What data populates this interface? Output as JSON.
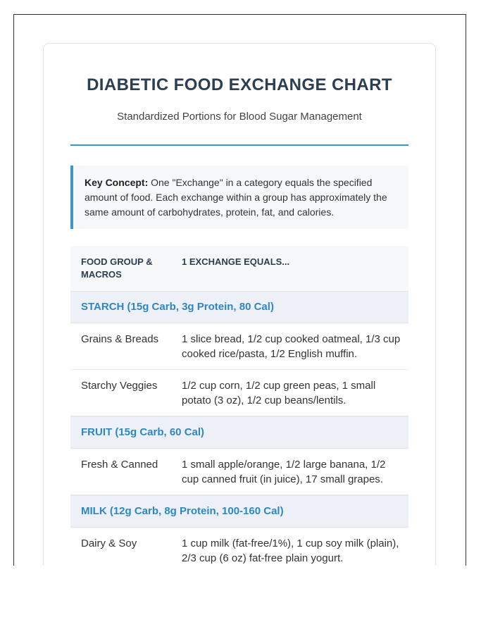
{
  "page": {
    "title": "DIABETIC FOOD EXCHANGE CHART",
    "subtitle": "Standardized Portions for Blood Sugar Management"
  },
  "key_concept": {
    "label": "Key Concept:",
    "text": " One \"Exchange\" in a category equals the specified amount of food. Each exchange within a group has approximately the same amount of carbohydrates, protein, fat, and calories."
  },
  "table": {
    "headers": {
      "col1": "FOOD GROUP & MACROS",
      "col2": "1 EXCHANGE EQUALS..."
    },
    "sections": [
      {
        "title": "STARCH (15g Carb, 3g Protein, 80 Cal)",
        "rows": [
          {
            "label": "Grains & Breads",
            "desc": "1 slice bread, 1/2 cup cooked oatmeal, 1/3 cup cooked rice/pasta, 1/2 English muffin."
          },
          {
            "label": "Starchy Veggies",
            "desc": "1/2 cup corn, 1/2 cup green peas, 1 small potato (3 oz), 1/2 cup beans/lentils."
          }
        ]
      },
      {
        "title": "FRUIT (15g Carb, 60 Cal)",
        "rows": [
          {
            "label": "Fresh & Canned",
            "desc": "1 small apple/orange, 1/2 large banana, 1/2 cup canned fruit (in juice), 17 small grapes."
          }
        ]
      },
      {
        "title": "MILK (12g Carb, 8g Protein, 100-160 Cal)",
        "rows": [
          {
            "label": "Dairy & Soy",
            "desc": "1 cup milk (fat-free/1%), 1 cup soy milk (plain), 2/3 cup (6 oz) fat-free plain yogurt."
          }
        ]
      }
    ]
  },
  "colors": {
    "accent_blue": "#4093cf",
    "section_text_blue": "#2e86c5",
    "title_color": "#2c3e50",
    "section_bg": "#edf1f7",
    "header_bg": "#f6f8f9",
    "key_box_bg": "#f7f8fa",
    "frame_border": "#333333"
  }
}
